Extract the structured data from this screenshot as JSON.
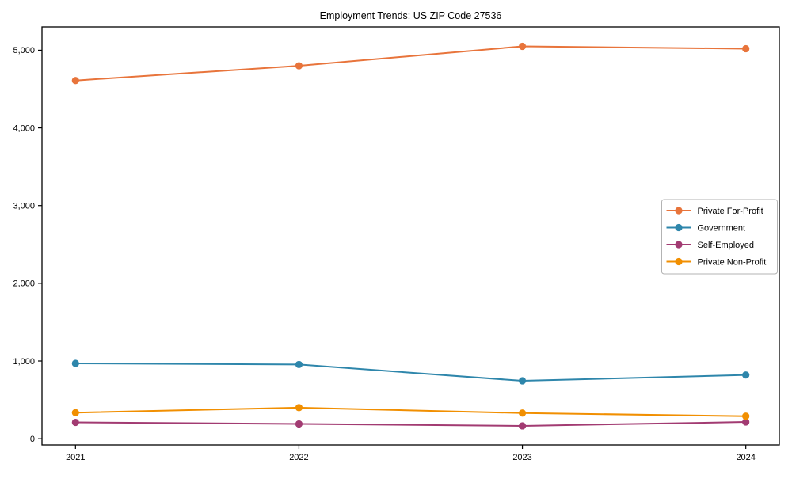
{
  "chart_data": {
    "type": "line",
    "title": "Employment Trends: US ZIP Code 27536",
    "x": [
      2021,
      2022,
      2023,
      2024
    ],
    "x_tick_labels": [
      "2021",
      "2022",
      "2023",
      "2024"
    ],
    "series": [
      {
        "name": "Private For-Profit",
        "color": "#E8743B",
        "values": [
          4610,
          4800,
          5050,
          5020
        ]
      },
      {
        "name": "Government",
        "color": "#2E86AB",
        "values": [
          970,
          955,
          745,
          820
        ]
      },
      {
        "name": "Self-Employed",
        "color": "#A23B72",
        "values": [
          210,
          190,
          165,
          215
        ]
      },
      {
        "name": "Private Non-Profit",
        "color": "#F18F01",
        "values": [
          335,
          400,
          330,
          290
        ]
      }
    ],
    "xlabel": "",
    "ylabel": "",
    "ylim": [
      -80,
      5300
    ],
    "yticks": [
      0,
      1000,
      2000,
      3000,
      4000,
      5000
    ],
    "ytick_labels": [
      "0",
      "1,000",
      "2,000",
      "3,000",
      "4,000",
      "5,000"
    ],
    "grid": false,
    "legend_position": "center right",
    "axis_color": "#000000",
    "background_color": "#ffffff",
    "legend_border_color": "#b3b3b3"
  }
}
